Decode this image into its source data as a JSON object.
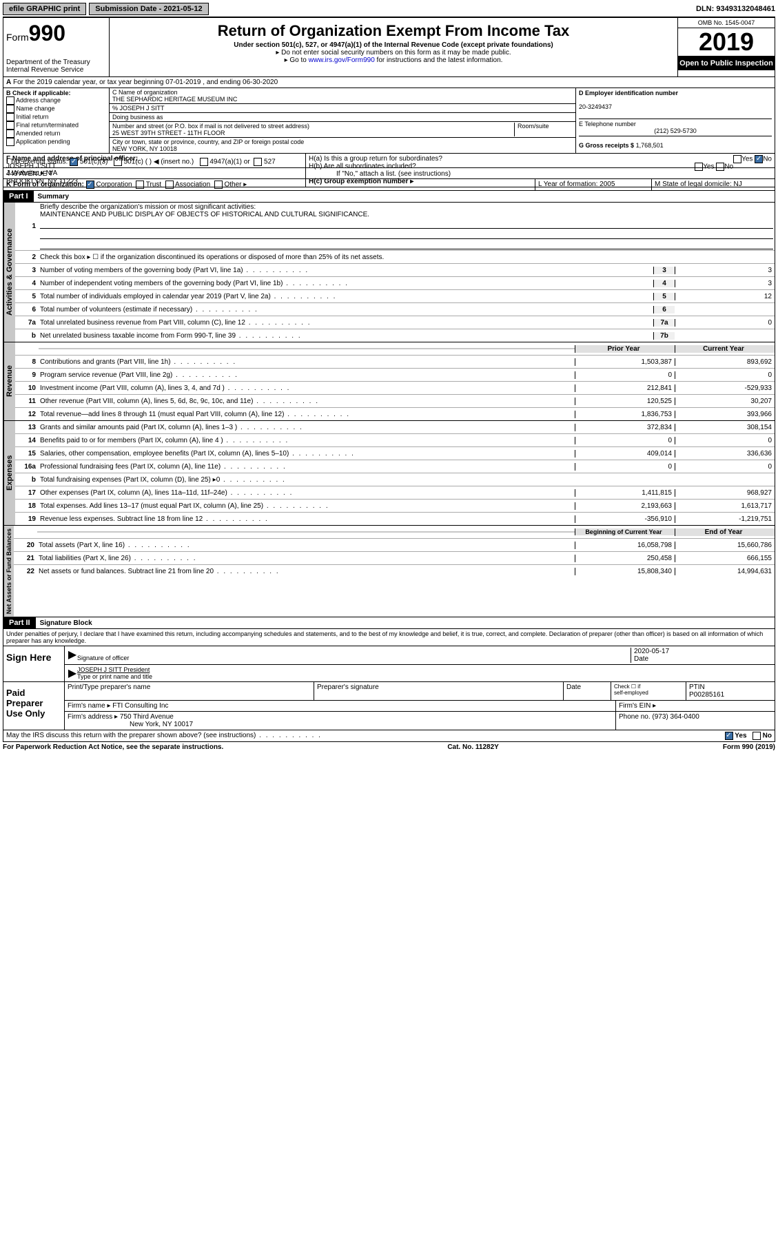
{
  "top": {
    "efile": "efile GRAPHIC print",
    "submission": "Submission Date - 2021-05-12",
    "dln": "DLN: 93493132048461"
  },
  "header": {
    "form": "Form",
    "formnum": "990",
    "title": "Return of Organization Exempt From Income Tax",
    "subtitle": "Under section 501(c), 527, or 4947(a)(1) of the Internal Revenue Code (except private foundations)",
    "instr1": "▸ Do not enter social security numbers on this form as it may be made public.",
    "instr2_pre": "▸ Go to ",
    "instr2_link": "www.irs.gov/Form990",
    "instr2_post": " for instructions and the latest information.",
    "dept": "Department of the Treasury",
    "irs": "Internal Revenue Service",
    "omb": "OMB No. 1545-0047",
    "year": "2019",
    "open": "Open to Public Inspection"
  },
  "A": "For the 2019 calendar year, or tax year beginning 07-01-2019    , and ending 06-30-2020",
  "B": {
    "hdr": "B Check if applicable:",
    "items": [
      "Address change",
      "Name change",
      "Initial return",
      "Final return/terminated",
      "Amended return",
      "Application pending"
    ]
  },
  "C": {
    "name_label": "C Name of organization",
    "name": "THE SEPHARDIC HERITAGE MUSEUM INC",
    "care_label": "% JOSEPH J SITT",
    "dba_label": "Doing business as",
    "addr_label": "Number and street (or P.O. box if mail is not delivered to street address)",
    "room_label": "Room/suite",
    "addr": "25 WEST 39TH STREET - 11TH FLOOR",
    "city_label": "City or town, state or province, country, and ZIP or foreign postal code",
    "city": "NEW YORK, NY  10018"
  },
  "D": {
    "label": "D Employer identification number",
    "val": "20-3249437"
  },
  "E": {
    "label": "E Telephone number",
    "val": "(212) 529-5730"
  },
  "G": {
    "label": "G Gross receipts $",
    "val": "1,768,501"
  },
  "F": {
    "label": "F  Name and address of principal officer:",
    "name": "JOSEPH J SITT",
    "addr1": "449 AVENUE T",
    "addr2": "BROOKLYN, NY  11223"
  },
  "H": {
    "a": "H(a)  Is this a group return for subordinates?",
    "b": "H(b)  Are all subordinates included?",
    "b_note": "If \"No,\" attach a list. (see instructions)",
    "c": "H(c)  Group exemption number ▸"
  },
  "I_label": "Tax-exempt status:",
  "I_opts": [
    "501(c)(3)",
    "501(c) (   ) ◀ (insert no.)",
    "4947(a)(1) or",
    "527"
  ],
  "J": "Website: ▸",
  "J_val": "N/A",
  "K": "K Form of organization:",
  "K_opts": [
    "Corporation",
    "Trust",
    "Association",
    "Other ▸"
  ],
  "L": "L Year of formation: 2005",
  "M": "M State of legal domicile: NJ",
  "part1": {
    "hdr": "Part I",
    "title": "Summary"
  },
  "summary_lines": {
    "l1": "Briefly describe the organization's mission or most significant activities:",
    "l1val": "MAINTENANCE AND PUBLIC DISPLAY OF OBJECTS OF HISTORICAL AND CULTURAL SIGNIFICANCE.",
    "l2": "Check this box ▸ ☐  if the organization discontinued its operations or disposed of more than 25% of its net assets.",
    "l3": "Number of voting members of the governing body (Part VI, line 1a)",
    "l4": "Number of independent voting members of the governing body (Part VI, line 1b)",
    "l5": "Total number of individuals employed in calendar year 2019 (Part V, line 2a)",
    "l6": "Total number of volunteers (estimate if necessary)",
    "l7a": "Total unrelated business revenue from Part VIII, column (C), line 12",
    "l7b": "Net unrelated business taxable income from Form 990-T, line 39"
  },
  "summary_vals": {
    "l3": "3",
    "l4": "3",
    "l5": "12",
    "l6": "",
    "l7a": "0",
    "l7b": ""
  },
  "rev_hdr": {
    "prior": "Prior Year",
    "current": "Current Year"
  },
  "revenue": [
    {
      "n": "8",
      "d": "Contributions and grants (Part VIII, line 1h)",
      "p": "1,503,387",
      "c": "893,692"
    },
    {
      "n": "9",
      "d": "Program service revenue (Part VIII, line 2g)",
      "p": "0",
      "c": "0"
    },
    {
      "n": "10",
      "d": "Investment income (Part VIII, column (A), lines 3, 4, and 7d )",
      "p": "212,841",
      "c": "-529,933"
    },
    {
      "n": "11",
      "d": "Other revenue (Part VIII, column (A), lines 5, 6d, 8c, 9c, 10c, and 11e)",
      "p": "120,525",
      "c": "30,207"
    },
    {
      "n": "12",
      "d": "Total revenue—add lines 8 through 11 (must equal Part VIII, column (A), line 12)",
      "p": "1,836,753",
      "c": "393,966"
    }
  ],
  "expenses": [
    {
      "n": "13",
      "d": "Grants and similar amounts paid (Part IX, column (A), lines 1–3 )",
      "p": "372,834",
      "c": "308,154"
    },
    {
      "n": "14",
      "d": "Benefits paid to or for members (Part IX, column (A), line 4 )",
      "p": "0",
      "c": "0"
    },
    {
      "n": "15",
      "d": "Salaries, other compensation, employee benefits (Part IX, column (A), lines 5–10)",
      "p": "409,014",
      "c": "336,636"
    },
    {
      "n": "16a",
      "d": "Professional fundraising fees (Part IX, column (A), line 11e)",
      "p": "0",
      "c": "0"
    },
    {
      "n": "b",
      "d": "Total fundraising expenses (Part IX, column (D), line 25) ▸0",
      "p": "",
      "c": "",
      "shade": true
    },
    {
      "n": "17",
      "d": "Other expenses (Part IX, column (A), lines 11a–11d, 11f–24e)",
      "p": "1,411,815",
      "c": "968,927"
    },
    {
      "n": "18",
      "d": "Total expenses. Add lines 13–17 (must equal Part IX, column (A), line 25)",
      "p": "2,193,663",
      "c": "1,613,717"
    },
    {
      "n": "19",
      "d": "Revenue less expenses. Subtract line 18 from line 12",
      "p": "-356,910",
      "c": "-1,219,751"
    }
  ],
  "na_hdr": {
    "prior": "Beginning of Current Year",
    "current": "End of Year"
  },
  "netassets": [
    {
      "n": "20",
      "d": "Total assets (Part X, line 16)",
      "p": "16,058,798",
      "c": "15,660,786"
    },
    {
      "n": "21",
      "d": "Total liabilities (Part X, line 26)",
      "p": "250,458",
      "c": "666,155"
    },
    {
      "n": "22",
      "d": "Net assets or fund balances. Subtract line 21 from line 20",
      "p": "15,808,340",
      "c": "14,994,631"
    }
  ],
  "part2": {
    "hdr": "Part II",
    "title": "Signature Block"
  },
  "perjury": "Under penalties of perjury, I declare that I have examined this return, including accompanying schedules and statements, and to the best of my knowledge and belief, it is true, correct, and complete. Declaration of preparer (other than officer) is based on all information of which preparer has any knowledge.",
  "sign": {
    "here": "Sign Here",
    "sigoff": "Signature of officer",
    "date": "Date",
    "dateval": "2020-05-17",
    "name": "JOSEPH J SITT President",
    "typeprint": "Type or print name and title"
  },
  "paid": {
    "label": "Paid Preparer Use Only",
    "h1": "Print/Type preparer's name",
    "h2": "Preparer's signature",
    "h3": "Date",
    "h4_a": "Check ☐ if",
    "h4_b": "self-employed",
    "h5": "PTIN",
    "ptin": "P00285161",
    "firm_label": "Firm's name    ▸",
    "firm": "FTI Consulting Inc",
    "ein_label": "Firm's EIN ▸",
    "addr_label": "Firm's address ▸",
    "addr1": "750 Third Avenue",
    "addr2": "New York, NY  10017",
    "phone_label": "Phone no.",
    "phone": "(973) 364-0400"
  },
  "discuss": "May the IRS discuss this return with the preparer shown above? (see instructions)",
  "footer": {
    "pra": "For Paperwork Reduction Act Notice, see the separate instructions.",
    "cat": "Cat. No. 11282Y",
    "form": "Form 990 (2019)"
  },
  "vlabels": {
    "ag": "Activities & Governance",
    "rev": "Revenue",
    "exp": "Expenses",
    "na": "Net Assets or Fund Balances"
  }
}
